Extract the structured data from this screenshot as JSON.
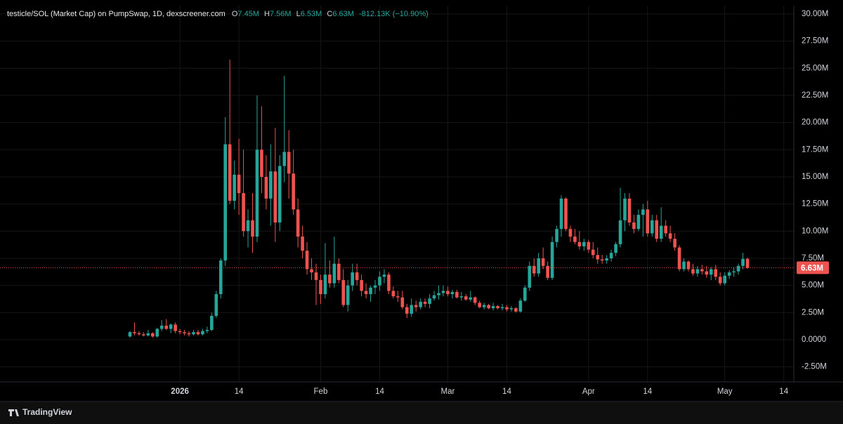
{
  "chart_data": {
    "type": "candlestick",
    "title": "testicle/SOL (Market Cap) on PumpSwap, 1D, dexscreener.com",
    "header_ohlc": [
      {
        "key": "O",
        "value": 7.45,
        "label": "7.45M"
      },
      {
        "key": "H",
        "value": 7.56,
        "label": "7.56M"
      },
      {
        "key": "L",
        "value": 6.53,
        "label": "6.53M"
      },
      {
        "key": "C",
        "value": 6.63,
        "label": "6.63M"
      }
    ],
    "change": {
      "value": -0.81213,
      "label": "-812.13K (−10.90%)"
    },
    "up_color": "#26a69a",
    "down_color": "#ef5350",
    "grid": true,
    "x": [
      "Dec 21",
      "Dec 22",
      "Dec 23",
      "Dec 24",
      "Dec 25",
      "Dec 26",
      "Dec 27",
      "Dec 28",
      "Dec 29",
      "Dec 30",
      "Dec 31",
      "Jan 1",
      "Jan 2",
      "Jan 3",
      "Jan 4",
      "Jan 5",
      "Jan 6",
      "Jan 7",
      "Jan 8",
      "Jan 9",
      "Jan 10",
      "Jan 11",
      "Jan 12",
      "Jan 13",
      "Jan 14",
      "Jan 15",
      "Jan 16",
      "Jan 17",
      "Jan 18",
      "Jan 19",
      "Jan 20",
      "Jan 21",
      "Jan 22",
      "Jan 23",
      "Jan 24",
      "Jan 25",
      "Jan 26",
      "Jan 27",
      "Jan 28",
      "Jan 29",
      "Jan 30",
      "Jan 31",
      "Feb 1",
      "Feb 2",
      "Feb 3",
      "Feb 4",
      "Feb 5",
      "Feb 6",
      "Feb 7",
      "Feb 8",
      "Feb 9",
      "Feb 10",
      "Feb 11",
      "Feb 12",
      "Feb 13",
      "Feb 14",
      "Feb 15",
      "Feb 16",
      "Feb 17",
      "Feb 18",
      "Feb 19",
      "Feb 20",
      "Feb 21",
      "Feb 22",
      "Feb 23",
      "Feb 24",
      "Feb 25",
      "Feb 26",
      "Feb 27",
      "Feb 28",
      "Mar 1",
      "Mar 2",
      "Mar 3",
      "Mar 4",
      "Mar 5",
      "Mar 6",
      "Mar 7",
      "Mar 8",
      "Mar 9",
      "Mar 10",
      "Mar 11",
      "Mar 12",
      "Mar 13",
      "Mar 14",
      "Mar 15",
      "Mar 16",
      "Mar 17",
      "Mar 18",
      "Mar 19",
      "Mar 20",
      "Mar 21",
      "Mar 22",
      "Mar 23",
      "Mar 24",
      "Mar 25",
      "Mar 26",
      "Mar 27",
      "Mar 28",
      "Mar 29",
      "Mar 30",
      "Mar 31",
      "Apr 1",
      "Apr 2",
      "Apr 3",
      "Apr 4",
      "Apr 5",
      "Apr 6",
      "Apr 7",
      "Apr 8",
      "Apr 9",
      "Apr 10",
      "Apr 11",
      "Apr 12",
      "Apr 13",
      "Apr 14",
      "Apr 15",
      "Apr 16",
      "Apr 17",
      "Apr 18",
      "Apr 19",
      "Apr 20",
      "Apr 21",
      "Apr 22",
      "Apr 23",
      "Apr 24",
      "Apr 25",
      "Apr 26",
      "Apr 27",
      "Apr 28",
      "Apr 29",
      "Apr 30",
      "May 1",
      "May 2",
      "May 3",
      "May 4",
      "May 5",
      "May 6"
    ],
    "open": [
      0.3,
      0.7,
      0.6,
      0.5,
      0.4,
      0.6,
      0.3,
      1.0,
      1.3,
      1.0,
      1.4,
      0.8,
      0.7,
      0.6,
      0.5,
      0.7,
      0.5,
      0.8,
      0.9,
      2.2,
      4.2,
      7.3,
      18.0,
      12.8,
      15.2,
      13.5,
      10.0,
      11.0,
      9.5,
      17.5,
      15.0,
      13.0,
      15.5,
      10.8,
      16.0,
      17.3,
      15.3,
      12.0,
      9.5,
      8.2,
      6.5,
      6.2,
      5.5,
      4.2,
      6.0,
      5.2,
      7.0,
      5.5,
      3.2,
      5.0,
      6.2,
      5.5,
      4.5,
      4.2,
      4.8,
      5.0,
      5.8,
      6.0,
      4.5,
      4.0,
      3.9,
      3.0,
      2.4,
      3.2,
      3.0,
      3.5,
      3.3,
      3.8,
      4.1,
      4.3,
      4.5,
      4.2,
      4.4,
      3.9,
      4.0,
      3.7,
      3.9,
      3.4,
      3.0,
      3.2,
      2.9,
      3.1,
      2.9,
      3.0,
      2.8,
      2.9,
      2.6,
      3.6,
      4.8,
      6.8,
      6.1,
      7.5,
      6.8,
      5.7,
      9.0,
      10.2,
      13.0,
      10.2,
      9.5,
      9.0,
      8.6,
      9.0,
      8.3,
      7.8,
      7.4,
      7.3,
      7.5,
      8.0,
      8.8,
      11.0,
      13.0,
      10.8,
      10.2,
      11.5,
      12.0,
      9.8,
      11.0,
      9.3,
      10.5,
      9.8,
      9.3,
      8.5,
      6.5,
      7.2,
      6.5,
      6.1,
      6.5,
      6.3,
      6.0,
      6.5,
      5.8,
      5.2,
      5.9,
      6.2,
      6.3,
      6.8,
      7.45
    ],
    "high": [
      0.8,
      1.6,
      0.8,
      0.7,
      0.9,
      0.7,
      1.1,
      1.8,
      1.9,
      1.5,
      1.6,
      1.0,
      0.9,
      0.8,
      0.9,
      0.9,
      1.0,
      1.2,
      2.5,
      4.5,
      7.5,
      20.5,
      25.8,
      16.5,
      18.5,
      17.5,
      12.0,
      13.5,
      22.5,
      21.5,
      17.0,
      18.0,
      19.5,
      17.0,
      24.3,
      19.3,
      17.5,
      13.0,
      10.5,
      9.0,
      7.5,
      7.0,
      6.0,
      8.9,
      7.3,
      9.5,
      7.5,
      6.5,
      5.5,
      7.0,
      7.0,
      6.0,
      5.2,
      5.0,
      5.5,
      6.3,
      6.5,
      6.2,
      4.9,
      4.5,
      4.5,
      3.3,
      3.8,
      3.6,
      3.8,
      3.8,
      4.2,
      4.5,
      5.0,
      5.0,
      4.9,
      4.6,
      4.6,
      4.4,
      4.2,
      4.5,
      4.0,
      3.6,
      3.4,
      3.3,
      3.4,
      3.2,
      3.3,
      3.2,
      3.1,
      3.0,
      3.8,
      5.0,
      7.2,
      7.5,
      8.0,
      8.5,
      7.2,
      9.5,
      10.5,
      13.3,
      13.1,
      10.5,
      10.2,
      10.0,
      9.3,
      9.2,
      9.0,
      8.5,
      7.8,
      7.8,
      8.3,
      9.0,
      14.0,
      13.5,
      13.5,
      11.5,
      12.0,
      12.5,
      12.8,
      11.5,
      11.5,
      12.2,
      11.0,
      10.5,
      9.8,
      8.7,
      7.5,
      7.3,
      7.0,
      6.8,
      6.9,
      6.8,
      6.7,
      6.9,
      6.2,
      6.2,
      6.4,
      6.7,
      7.0,
      8.0,
      7.56
    ],
    "low": [
      0.2,
      0.4,
      0.4,
      0.3,
      0.3,
      0.2,
      0.2,
      0.8,
      0.9,
      0.6,
      0.6,
      0.5,
      0.4,
      0.3,
      0.4,
      0.4,
      0.4,
      0.6,
      0.8,
      2.0,
      3.8,
      6.8,
      12.5,
      12.0,
      11.5,
      9.5,
      8.5,
      8.0,
      9.0,
      13.5,
      12.0,
      10.5,
      9.0,
      10.0,
      14.5,
      13.0,
      11.5,
      8.5,
      7.5,
      6.0,
      5.5,
      3.2,
      3.3,
      3.8,
      4.8,
      4.8,
      5.2,
      3.0,
      2.6,
      4.5,
      5.0,
      4.0,
      3.8,
      3.5,
      4.2,
      4.5,
      5.2,
      4.2,
      3.8,
      3.5,
      2.8,
      2.0,
      2.1,
      2.6,
      2.8,
      3.0,
      2.9,
      3.6,
      3.7,
      4.0,
      4.0,
      3.8,
      3.8,
      3.6,
      3.6,
      3.5,
      3.2,
      2.9,
      2.8,
      2.8,
      2.7,
      2.8,
      2.7,
      2.6,
      2.6,
      2.5,
      2.5,
      3.5,
      4.5,
      5.8,
      5.8,
      6.5,
      5.5,
      5.5,
      8.5,
      9.5,
      10.0,
      9.0,
      8.8,
      8.3,
      8.2,
      8.0,
      7.5,
      7.0,
      7.0,
      7.0,
      7.2,
      7.7,
      8.5,
      10.0,
      10.5,
      9.8,
      10.0,
      9.5,
      9.5,
      9.5,
      9.0,
      9.0,
      9.5,
      9.0,
      8.2,
      6.3,
      6.3,
      6.3,
      5.9,
      5.8,
      6.0,
      5.7,
      5.5,
      5.5,
      5.0,
      5.0,
      5.6,
      5.8,
      6.0,
      6.5,
      6.53
    ],
    "close": [
      0.7,
      0.6,
      0.5,
      0.4,
      0.6,
      0.3,
      1.0,
      1.3,
      1.0,
      1.4,
      0.8,
      0.7,
      0.6,
      0.5,
      0.7,
      0.5,
      0.8,
      0.9,
      2.2,
      4.2,
      7.3,
      18.0,
      12.8,
      15.2,
      13.5,
      10.0,
      11.0,
      9.5,
      17.5,
      15.0,
      13.0,
      15.5,
      10.8,
      16.0,
      17.3,
      15.3,
      12.0,
      9.5,
      8.2,
      6.5,
      6.2,
      5.5,
      4.2,
      6.0,
      5.2,
      7.0,
      5.5,
      3.2,
      5.0,
      6.2,
      5.5,
      4.5,
      4.2,
      4.8,
      5.0,
      5.8,
      6.0,
      4.5,
      4.0,
      3.9,
      3.0,
      2.4,
      3.2,
      3.0,
      3.5,
      3.3,
      3.8,
      4.1,
      4.3,
      4.5,
      4.2,
      4.4,
      3.9,
      4.0,
      3.7,
      3.9,
      3.4,
      3.0,
      3.2,
      2.9,
      3.1,
      2.9,
      3.0,
      2.8,
      2.9,
      2.6,
      3.6,
      4.8,
      6.8,
      6.1,
      7.5,
      6.8,
      5.7,
      9.0,
      10.2,
      13.0,
      10.2,
      9.5,
      9.0,
      8.6,
      9.0,
      8.3,
      7.8,
      7.4,
      7.3,
      7.5,
      8.0,
      8.8,
      11.0,
      13.0,
      10.8,
      10.2,
      11.5,
      12.0,
      9.8,
      11.0,
      9.3,
      10.5,
      9.8,
      9.3,
      8.5,
      6.5,
      7.2,
      6.5,
      6.1,
      6.5,
      6.3,
      6.0,
      6.5,
      5.8,
      5.2,
      5.9,
      6.2,
      6.3,
      6.8,
      7.45,
      6.63
    ],
    "last_price": {
      "value": 6.63,
      "label": "6.63M"
    },
    "ylim": [
      -3.88,
      30.77
    ],
    "yticks": [
      {
        "value": -2.5,
        "label": "-2.50M"
      },
      {
        "value": 0,
        "label": "0.0000"
      },
      {
        "value": 2.5,
        "label": "2.50M"
      },
      {
        "value": 5,
        "label": "5.00M"
      },
      {
        "value": 7.5,
        "label": "7.50M"
      },
      {
        "value": 10,
        "label": "10.00M"
      },
      {
        "value": 12.5,
        "label": "12.50M"
      },
      {
        "value": 15,
        "label": "15.00M"
      },
      {
        "value": 17.5,
        "label": "17.50M"
      },
      {
        "value": 20,
        "label": "20.00M"
      },
      {
        "value": 22.5,
        "label": "22.50M"
      },
      {
        "value": 25,
        "label": "25.00M"
      },
      {
        "value": 27.5,
        "label": "27.50M"
      },
      {
        "value": 30,
        "label": "30.00M"
      }
    ],
    "xticks": [
      {
        "value": "Jan 1",
        "label": "2026"
      },
      {
        "value": "Jan 14",
        "label": "14"
      },
      {
        "value": "Feb 1",
        "label": "Feb"
      },
      {
        "value": "Feb 14",
        "label": "14"
      },
      {
        "value": "Mar 1",
        "label": "Mar"
      },
      {
        "value": "Mar 14",
        "label": "14"
      },
      {
        "value": "Apr 1",
        "label": "Apr"
      },
      {
        "value": "Apr 14",
        "label": "14"
      },
      {
        "value": "May 1",
        "label": "May"
      },
      {
        "value": "May 14",
        "label": "14"
      }
    ]
  },
  "footer": "TradingView"
}
